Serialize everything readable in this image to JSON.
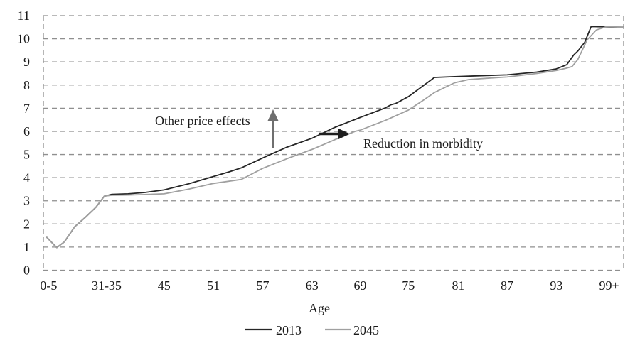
{
  "chart_data": {
    "type": "line",
    "title": "",
    "xlabel": "Age",
    "ylabel": "",
    "ylim": [
      0,
      11
    ],
    "y_ticks": [
      0,
      1,
      2,
      3,
      4,
      5,
      6,
      7,
      8,
      9,
      10,
      11
    ],
    "x_ticks": [
      {
        "label": "0-5",
        "f": 0.009
      },
      {
        "label": "31-35",
        "f": 0.109
      },
      {
        "label": "45",
        "f": 0.208
      },
      {
        "label": "51",
        "f": 0.293
      },
      {
        "label": "57",
        "f": 0.378
      },
      {
        "label": "63",
        "f": 0.463
      },
      {
        "label": "69",
        "f": 0.546
      },
      {
        "label": "75",
        "f": 0.629
      },
      {
        "label": "81",
        "f": 0.715
      },
      {
        "label": "87",
        "f": 0.799
      },
      {
        "label": "93",
        "f": 0.884
      },
      {
        "label": "99+",
        "f": 0.975
      }
    ],
    "grid": "horizontal dashed gridlines with dashed left/right frame",
    "legend_position": "bottom-center",
    "series": [
      {
        "name": "2013",
        "color": "#262626",
        "points": [
          [
            0.006,
            1.42
          ],
          [
            0.023,
            0.98
          ],
          [
            0.036,
            1.22
          ],
          [
            0.054,
            1.88
          ],
          [
            0.072,
            2.28
          ],
          [
            0.0905,
            2.72
          ],
          [
            0.105,
            3.2
          ],
          [
            0.118,
            3.28
          ],
          [
            0.146,
            3.3
          ],
          [
            0.175,
            3.36
          ],
          [
            0.208,
            3.47
          ],
          [
            0.25,
            3.73
          ],
          [
            0.293,
            4.05
          ],
          [
            0.32,
            4.25
          ],
          [
            0.341,
            4.42
          ],
          [
            0.378,
            4.85
          ],
          [
            0.42,
            5.32
          ],
          [
            0.463,
            5.7
          ],
          [
            0.503,
            6.18
          ],
          [
            0.546,
            6.6
          ],
          [
            0.588,
            7.0
          ],
          [
            0.599,
            7.15
          ],
          [
            0.607,
            7.2
          ],
          [
            0.629,
            7.5
          ],
          [
            0.674,
            8.33
          ],
          [
            0.705,
            8.36
          ],
          [
            0.75,
            8.4
          ],
          [
            0.799,
            8.44
          ],
          [
            0.85,
            8.56
          ],
          [
            0.884,
            8.7
          ],
          [
            0.902,
            8.88
          ],
          [
            0.914,
            9.3
          ],
          [
            0.921,
            9.47
          ],
          [
            0.933,
            9.85
          ],
          [
            0.944,
            10.53
          ],
          [
            0.975,
            10.51
          ],
          [
            1.0,
            10.5
          ]
        ]
      },
      {
        "name": "2045",
        "color": "#a0a0a0",
        "points": [
          [
            0.006,
            1.42
          ],
          [
            0.023,
            0.98
          ],
          [
            0.036,
            1.22
          ],
          [
            0.054,
            1.88
          ],
          [
            0.072,
            2.28
          ],
          [
            0.0905,
            2.72
          ],
          [
            0.105,
            3.2
          ],
          [
            0.118,
            3.24
          ],
          [
            0.146,
            3.25
          ],
          [
            0.175,
            3.27
          ],
          [
            0.208,
            3.3
          ],
          [
            0.25,
            3.5
          ],
          [
            0.293,
            3.75
          ],
          [
            0.341,
            3.92
          ],
          [
            0.378,
            4.4
          ],
          [
            0.42,
            4.82
          ],
          [
            0.463,
            5.22
          ],
          [
            0.503,
            5.65
          ],
          [
            0.537,
            6.0
          ],
          [
            0.546,
            6.05
          ],
          [
            0.59,
            6.48
          ],
          [
            0.629,
            6.92
          ],
          [
            0.655,
            7.35
          ],
          [
            0.674,
            7.68
          ],
          [
            0.709,
            8.1
          ],
          [
            0.733,
            8.24
          ],
          [
            0.78,
            8.32
          ],
          [
            0.799,
            8.35
          ],
          [
            0.85,
            8.5
          ],
          [
            0.884,
            8.63
          ],
          [
            0.9,
            8.72
          ],
          [
            0.911,
            8.8
          ],
          [
            0.921,
            9.1
          ],
          [
            0.937,
            9.95
          ],
          [
            0.953,
            10.38
          ],
          [
            0.97,
            10.52
          ],
          [
            1.0,
            10.5
          ]
        ]
      }
    ],
    "annotations": [
      {
        "text": "Other price effects",
        "color": "#7d7d7d",
        "arrow": "up",
        "arrow_color": "#6f6f6f"
      },
      {
        "text": "Reduction in morbidity",
        "color": "#1f1f1f",
        "arrow": "right",
        "arrow_color": "#1f1f1f"
      }
    ]
  },
  "colors": {
    "grid": "#8f8f8f",
    "background": "#ffffff",
    "tick_text": "#1a1a1a"
  }
}
